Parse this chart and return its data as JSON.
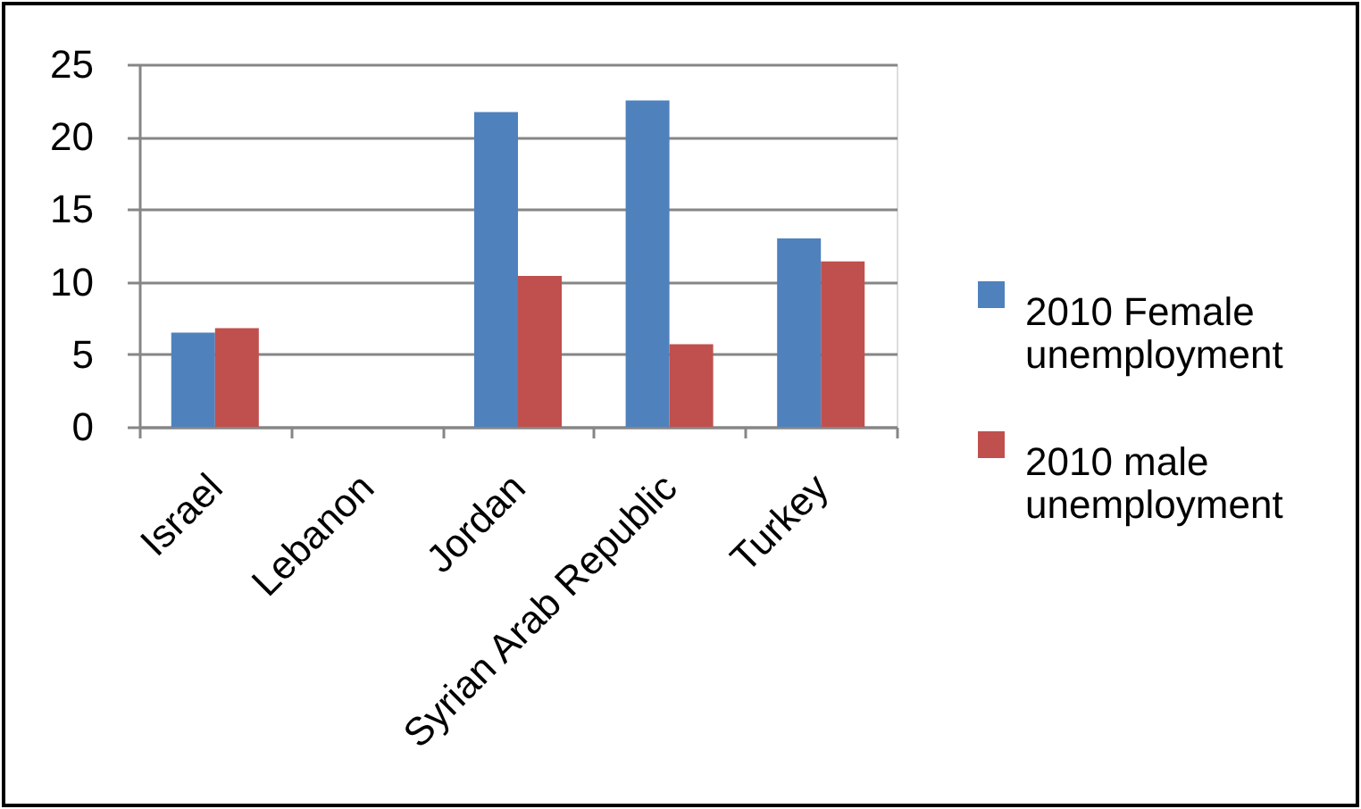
{
  "chart_data": {
    "type": "bar",
    "categories": [
      "Israel",
      "Lebanon",
      "Jordan",
      "Syrian Arab Republic",
      "Turkey"
    ],
    "series": [
      {
        "name": "2010 Female unemployment",
        "color": "#4f81bd",
        "values": [
          6.5,
          null,
          21.7,
          22.5,
          13.0
        ]
      },
      {
        "name": "2010 male unemployment",
        "color": "#c0504d",
        "values": [
          6.8,
          null,
          10.4,
          5.7,
          11.4
        ]
      }
    ],
    "ylim": [
      0,
      25
    ],
    "yticks": [
      0,
      5,
      10,
      15,
      20,
      25
    ],
    "grid": "y",
    "legend": "right"
  }
}
